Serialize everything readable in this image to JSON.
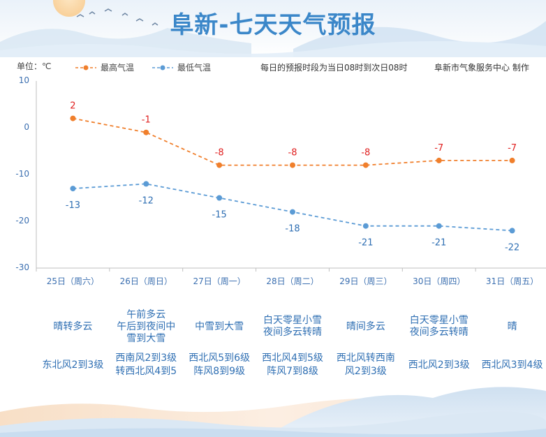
{
  "title": "阜新-七天天气预报",
  "unit_label": "单位：℃",
  "note": "每日的预报时段为当日08时到次日08时",
  "source": "阜新市气象服务中心 制作",
  "colors": {
    "high": "#f07f2c",
    "low": "#5b9bd5",
    "high_label": "#e02020",
    "low_label": "#2f6fb3",
    "title": "#3b87c9"
  },
  "chart_data": {
    "type": "line",
    "categories": [
      "25日（周六）",
      "26日（周日）",
      "27日（周一）",
      "28日（周二）",
      "29日（周三）",
      "30日（周四）",
      "31日（周五）"
    ],
    "series": [
      {
        "name": "最高气温",
        "values": [
          2,
          -1,
          -8,
          -8,
          -8,
          -7,
          -7
        ]
      },
      {
        "name": "最低气温",
        "values": [
          -13,
          -12,
          -15,
          -18,
          -21,
          -21,
          -22
        ]
      }
    ],
    "ylim": [
      -30,
      10
    ],
    "yticks": [
      "10",
      "0",
      "-10",
      "-20",
      "-30"
    ],
    "legend": "top-left",
    "grid": false
  },
  "days": [
    {
      "weather": "晴转多云",
      "wind": "东北风2到3级"
    },
    {
      "weather": "午前多云\n午后到夜间中\n雪到大雪",
      "wind": "西南风2到3级\n转西北风4到5\n级"
    },
    {
      "weather": "中雪到大雪",
      "wind": "西北风5到6级\n阵风8到9级"
    },
    {
      "weather": "白天零星小雪\n夜间多云转晴",
      "wind": "西北风4到5级\n阵风7到8级"
    },
    {
      "weather": "晴间多云",
      "wind": "西北风转西南\n风2到3级"
    },
    {
      "weather": "白天零星小雪\n夜间多云转晴",
      "wind": "西北风2到3级"
    },
    {
      "weather": "晴",
      "wind": "西北风3到4级"
    }
  ]
}
